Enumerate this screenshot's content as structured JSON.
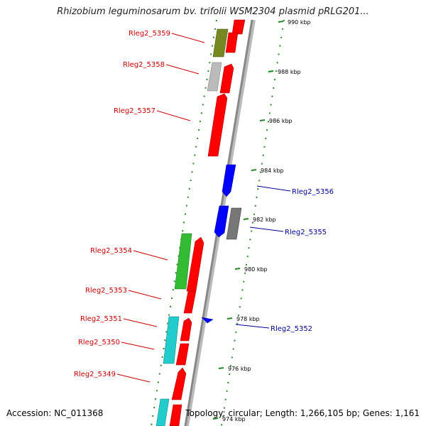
{
  "title": "Rhizobium leguminosarum bv. trifolii WSM2304 plasmid pRLG201...",
  "footer": {
    "accession": "Accession: NC_011368",
    "summary": "Topology: circular; Length: 1,266,105 bp; Genes: 1,161"
  },
  "colors": {
    "forward_gene": "#ff0000",
    "reverse_gene": "#0000ff",
    "forward_label": "#cc0000",
    "reverse_label": "#000099",
    "backbone": "#999999",
    "gc_ticks": "#228822"
  },
  "ticks": [
    {
      "label": "990 kbp"
    },
    {
      "label": "988 kbp"
    },
    {
      "label": "986 kbp"
    },
    {
      "label": "984 kbp"
    },
    {
      "label": "982 kbp"
    },
    {
      "label": "980 kbp"
    },
    {
      "label": "978 kbp"
    },
    {
      "label": "976 kbp"
    },
    {
      "label": "974 kbp"
    }
  ],
  "forward_labels": [
    {
      "text": "Rleg2_5359"
    },
    {
      "text": "Rleg2_5358"
    },
    {
      "text": "Rleg2_5357"
    },
    {
      "text": "Rleg2_5354"
    },
    {
      "text": "Rleg2_5353"
    },
    {
      "text": "Rleg2_5351"
    },
    {
      "text": "Rleg2_5350"
    },
    {
      "text": "Rleg2_5349"
    }
  ],
  "reverse_labels": [
    {
      "text": "Rleg2_5356"
    },
    {
      "text": "Rleg2_5355"
    },
    {
      "text": "Rleg2_5352"
    }
  ]
}
